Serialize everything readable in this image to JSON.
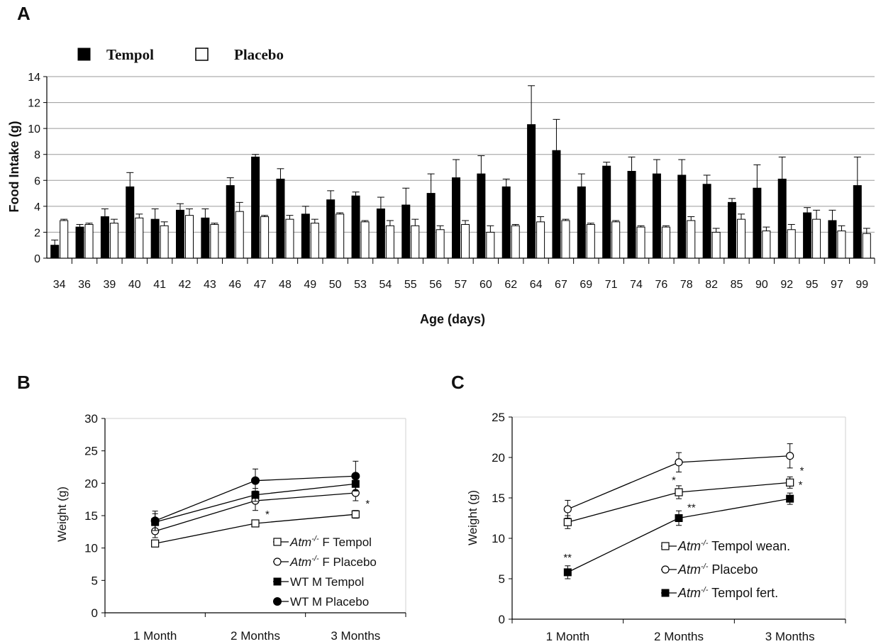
{
  "panels": {
    "a": "A",
    "b": "B",
    "c": "C"
  },
  "chart_data": [
    {
      "id": "A",
      "type": "bar",
      "xlabel": "Age (days)",
      "ylabel": "Food Intake (g)",
      "ylim": [
        0,
        14
      ],
      "yticks": [
        0,
        2,
        4,
        6,
        8,
        10,
        12,
        14
      ],
      "grid": true,
      "legend_position": "top-left",
      "categories": [
        "34",
        "36",
        "39",
        "40",
        "41",
        "42",
        "43",
        "46",
        "47",
        "48",
        "49",
        "50",
        "53",
        "54",
        "55",
        "56",
        "57",
        "60",
        "62",
        "64",
        "67",
        "69",
        "71",
        "74",
        "76",
        "78",
        "82",
        "85",
        "90",
        "92",
        "95",
        "97",
        "99"
      ],
      "series": [
        {
          "name": "Tempol",
          "color": "#000000",
          "values": [
            1.0,
            2.4,
            3.2,
            5.5,
            3.0,
            3.7,
            3.1,
            5.6,
            7.8,
            6.1,
            3.4,
            4.5,
            4.8,
            3.8,
            4.1,
            5.0,
            6.2,
            6.5,
            5.5,
            10.3,
            8.3,
            5.5,
            7.1,
            6.7,
            6.5,
            6.4,
            5.7,
            4.3,
            5.4,
            6.1,
            3.5,
            2.9,
            5.6
          ],
          "errors": [
            0.4,
            0.2,
            0.6,
            1.1,
            0.8,
            0.5,
            0.7,
            0.6,
            0.2,
            0.8,
            0.6,
            0.7,
            0.3,
            0.9,
            1.3,
            1.5,
            1.4,
            1.4,
            0.6,
            3.0,
            2.4,
            1.0,
            0.3,
            1.1,
            1.1,
            1.2,
            0.7,
            0.3,
            1.8,
            1.7,
            0.4,
            0.8,
            2.2
          ]
        },
        {
          "name": "Placebo",
          "color": "#ffffff",
          "values": [
            2.9,
            2.6,
            2.7,
            3.1,
            2.5,
            3.3,
            2.6,
            3.6,
            3.2,
            3.0,
            2.7,
            3.4,
            2.8,
            2.5,
            2.5,
            2.2,
            2.6,
            2.0,
            2.5,
            2.8,
            2.9,
            2.6,
            2.8,
            2.4,
            2.4,
            2.9,
            2.0,
            3.0,
            2.1,
            2.2,
            3.0,
            2.1,
            1.9
          ],
          "errors": [
            0.1,
            0.1,
            0.3,
            0.3,
            0.3,
            0.5,
            0.1,
            0.7,
            0.1,
            0.3,
            0.3,
            0.1,
            0.1,
            0.4,
            0.5,
            0.3,
            0.3,
            0.5,
            0.1,
            0.4,
            0.1,
            0.1,
            0.1,
            0.1,
            0.1,
            0.3,
            0.3,
            0.4,
            0.3,
            0.4,
            0.7,
            0.4,
            0.4
          ]
        }
      ]
    },
    {
      "id": "B",
      "type": "line",
      "xlabel": "",
      "ylabel": "Weight (g)",
      "ylim": [
        0,
        30
      ],
      "yticks": [
        0,
        5,
        10,
        15,
        20,
        25,
        30
      ],
      "categories": [
        "1 Month",
        "2 Months",
        "3 Months"
      ],
      "legend_position": "bottom-right",
      "series": [
        {
          "name_italic": "Atm",
          "name_sup": "-/-",
          "name_rest": " F Tempol",
          "marker": "open-square",
          "values": [
            10.7,
            13.8,
            15.2
          ],
          "errors": [
            0.4,
            0.5,
            0.6
          ],
          "stars": [
            "",
            "*",
            "*"
          ]
        },
        {
          "name_italic": "Atm",
          "name_sup": "-/-",
          "name_rest": " F Placebo",
          "marker": "open-circle",
          "values": [
            12.6,
            17.3,
            18.5
          ],
          "errors": [
            1.0,
            1.5,
            1.2
          ],
          "stars": [
            "",
            "",
            ""
          ]
        },
        {
          "name_italic": "",
          "name_sup": "",
          "name_rest": "WT M Tempol",
          "marker": "filled-square",
          "values": [
            14.0,
            18.2,
            19.9
          ],
          "errors": [
            1.3,
            1.0,
            1.0
          ],
          "stars": [
            "",
            "",
            ""
          ]
        },
        {
          "name_italic": "",
          "name_sup": "",
          "name_rest": "WT M Placebo",
          "marker": "filled-circle",
          "values": [
            14.2,
            20.4,
            21.1
          ],
          "errors": [
            1.5,
            1.8,
            2.3
          ],
          "stars": [
            "",
            "",
            ""
          ]
        }
      ]
    },
    {
      "id": "C",
      "type": "line",
      "xlabel": "",
      "ylabel": "Weight (g)",
      "ylim": [
        0,
        25
      ],
      "yticks": [
        0,
        5,
        10,
        15,
        20,
        25
      ],
      "categories": [
        "1 Month",
        "2 Months",
        "3 Months"
      ],
      "legend_position": "bottom-right",
      "series": [
        {
          "name_italic": "Atm",
          "name_sup": "-/-",
          "name_rest": "  Tempol wean.",
          "marker": "open-square",
          "values": [
            12.0,
            15.7,
            16.9
          ],
          "errors": [
            0.8,
            0.8,
            0.7
          ],
          "stars": [
            "",
            "*",
            "*"
          ]
        },
        {
          "name_italic": "Atm",
          "name_sup": "-/-",
          "name_rest": " Placebo",
          "marker": "open-circle",
          "values": [
            13.6,
            19.4,
            20.2
          ],
          "errors": [
            1.1,
            1.2,
            1.5
          ],
          "stars": [
            "",
            "",
            "*"
          ]
        },
        {
          "name_italic": "Atm",
          "name_sup": "-/-",
          "name_rest": "  Tempol fert.",
          "marker": "filled-square",
          "values": [
            5.8,
            12.5,
            14.9
          ],
          "errors": [
            0.8,
            0.9,
            0.7
          ],
          "stars": [
            "**",
            "**",
            ""
          ]
        }
      ]
    }
  ]
}
